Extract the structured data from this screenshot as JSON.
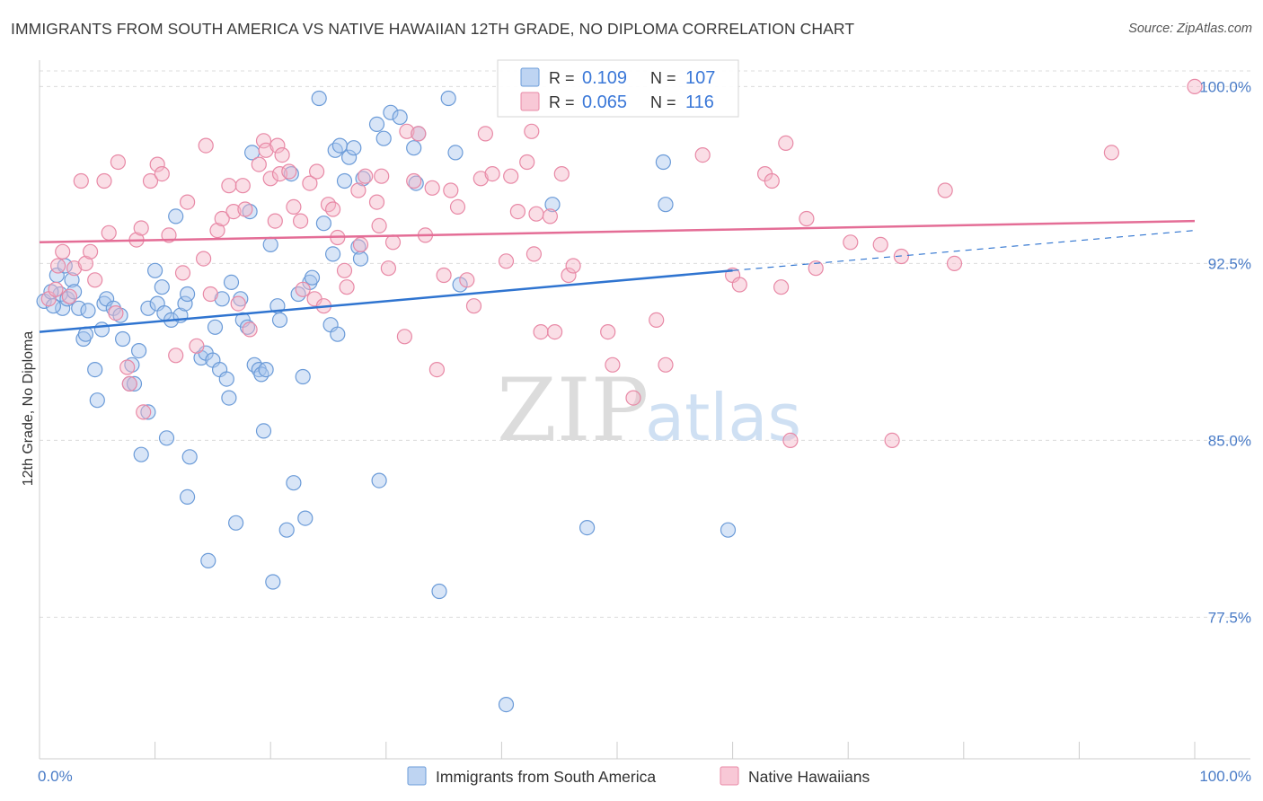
{
  "title": "IMMIGRANTS FROM SOUTH AMERICA VS NATIVE HAWAIIAN 12TH GRADE, NO DIPLOMA CORRELATION CHART",
  "source": "Source: ZipAtlas.com",
  "watermark": {
    "zip": "ZIP",
    "atlas": "atlas"
  },
  "legend_top": [
    {
      "r_label": "R =",
      "r_value": "0.109",
      "n_label": "N =",
      "n_value": "107",
      "color": "#a8c6ee"
    },
    {
      "r_label": "R =",
      "r_value": "0.065",
      "n_label": "N =",
      "n_value": "116",
      "color": "#f5b6c8"
    }
  ],
  "legend_bottom": [
    {
      "label": "Immigrants from South America",
      "color": "#a8c6ee"
    },
    {
      "label": "Native Hawaiians",
      "color": "#f5b6c8"
    }
  ],
  "chart_data": {
    "type": "scatter",
    "ylabel": "12th Grade, No Diploma",
    "xlim": [
      0,
      100
    ],
    "ylim": [
      71.5,
      101.5
    ],
    "y_ticks": [
      {
        "value": 100,
        "label": "100.0%"
      },
      {
        "value": 92.5,
        "label": "92.5%"
      },
      {
        "value": 85,
        "label": "85.0%"
      },
      {
        "value": 77.5,
        "label": "77.5%"
      }
    ],
    "x_tick_labels": [
      {
        "value": 0,
        "label": "0.0%"
      },
      {
        "value": 100,
        "label": "100.0%"
      }
    ],
    "grid": true,
    "series": [
      {
        "name": "Immigrants from South America",
        "color": "#a8c6ee",
        "stroke": "#6b9bd8",
        "trend": {
          "x0": 0,
          "y0": 89.6,
          "x1": 60,
          "y1": 92.2,
          "dash_x1": 100,
          "dash_y1": 93.9,
          "color": "#2f74d0"
        },
        "points": [
          [
            1.5,
            92.0
          ],
          [
            1.8,
            91.2
          ],
          [
            2.0,
            90.6
          ],
          [
            2.2,
            92.4
          ],
          [
            2.4,
            91.0
          ],
          [
            2.8,
            91.8
          ],
          [
            3.0,
            91.3
          ],
          [
            3.4,
            90.6
          ],
          [
            3.8,
            89.3
          ],
          [
            4.0,
            89.5
          ],
          [
            4.2,
            90.5
          ],
          [
            4.8,
            88.0
          ],
          [
            5.0,
            86.7
          ],
          [
            5.4,
            89.7
          ],
          [
            5.6,
            90.8
          ],
          [
            5.8,
            91.0
          ],
          [
            6.4,
            90.6
          ],
          [
            7.0,
            90.3
          ],
          [
            7.2,
            89.3
          ],
          [
            7.8,
            87.4
          ],
          [
            8.0,
            88.2
          ],
          [
            8.2,
            87.4
          ],
          [
            8.6,
            88.8
          ],
          [
            8.8,
            84.4
          ],
          [
            9.4,
            86.2
          ],
          [
            9.4,
            90.6
          ],
          [
            10.0,
            92.2
          ],
          [
            10.2,
            90.8
          ],
          [
            10.6,
            91.5
          ],
          [
            10.8,
            90.4
          ],
          [
            11.0,
            85.1
          ],
          [
            11.4,
            90.1
          ],
          [
            11.8,
            94.5
          ],
          [
            12.2,
            90.3
          ],
          [
            12.6,
            90.8
          ],
          [
            12.8,
            91.2
          ],
          [
            12.8,
            82.6
          ],
          [
            13.0,
            84.3
          ],
          [
            14.0,
            88.5
          ],
          [
            14.4,
            88.7
          ],
          [
            14.6,
            79.9
          ],
          [
            15.0,
            88.4
          ],
          [
            15.2,
            89.8
          ],
          [
            15.6,
            88.0
          ],
          [
            15.8,
            91.0
          ],
          [
            16.2,
            87.6
          ],
          [
            16.4,
            86.8
          ],
          [
            16.6,
            91.7
          ],
          [
            17.0,
            81.5
          ],
          [
            17.4,
            91.0
          ],
          [
            17.6,
            90.1
          ],
          [
            18.0,
            89.8
          ],
          [
            18.2,
            94.7
          ],
          [
            18.4,
            97.2
          ],
          [
            18.6,
            88.2
          ],
          [
            19.0,
            88.0
          ],
          [
            19.2,
            87.8
          ],
          [
            19.4,
            85.4
          ],
          [
            19.6,
            88.0
          ],
          [
            20.0,
            93.3
          ],
          [
            20.2,
            79.0
          ],
          [
            20.6,
            90.7
          ],
          [
            20.8,
            90.1
          ],
          [
            21.4,
            81.2
          ],
          [
            21.8,
            96.3
          ],
          [
            22.0,
            83.2
          ],
          [
            22.4,
            91.2
          ],
          [
            22.8,
            87.7
          ],
          [
            23.0,
            81.7
          ],
          [
            23.4,
            91.7
          ],
          [
            23.6,
            91.9
          ],
          [
            24.2,
            99.5
          ],
          [
            24.6,
            94.2
          ],
          [
            25.2,
            89.9
          ],
          [
            25.4,
            92.9
          ],
          [
            25.6,
            97.3
          ],
          [
            25.8,
            89.5
          ],
          [
            26.0,
            97.5
          ],
          [
            26.4,
            96.0
          ],
          [
            26.8,
            97.0
          ],
          [
            27.2,
            97.4
          ],
          [
            27.6,
            93.2
          ],
          [
            27.8,
            92.7
          ],
          [
            28.0,
            96.1
          ],
          [
            29.2,
            98.4
          ],
          [
            29.8,
            97.8
          ],
          [
            30.4,
            98.9
          ],
          [
            29.4,
            83.3
          ],
          [
            31.2,
            98.7
          ],
          [
            32.4,
            97.4
          ],
          [
            32.6,
            95.9
          ],
          [
            32.8,
            98.0
          ],
          [
            34.6,
            78.6
          ],
          [
            35.4,
            99.5
          ],
          [
            36.0,
            97.2
          ],
          [
            36.4,
            91.6
          ],
          [
            40.4,
            73.8
          ],
          [
            44.4,
            95.0
          ],
          [
            47.4,
            81.3
          ],
          [
            54.0,
            96.8
          ],
          [
            54.2,
            95.0
          ],
          [
            59.6,
            81.2
          ],
          [
            0.4,
            90.9
          ],
          [
            1.0,
            91.3
          ],
          [
            1.2,
            90.7
          ]
        ]
      },
      {
        "name": "Native Hawaiians",
        "color": "#f5b6c8",
        "stroke": "#e889a6",
        "trend": {
          "x0": 0,
          "y0": 93.4,
          "x1": 100,
          "y1": 94.3,
          "color": "#e46d96"
        },
        "points": [
          [
            0.8,
            91.0
          ],
          [
            1.4,
            91.4
          ],
          [
            1.6,
            92.4
          ],
          [
            2.0,
            93.0
          ],
          [
            2.6,
            91.1
          ],
          [
            3.0,
            92.3
          ],
          [
            3.6,
            96.0
          ],
          [
            4.0,
            92.5
          ],
          [
            4.4,
            93.0
          ],
          [
            4.8,
            91.8
          ],
          [
            5.6,
            96.0
          ],
          [
            6.0,
            93.8
          ],
          [
            6.6,
            90.4
          ],
          [
            6.8,
            96.8
          ],
          [
            7.6,
            88.1
          ],
          [
            7.8,
            87.4
          ],
          [
            8.4,
            93.5
          ],
          [
            8.8,
            94.0
          ],
          [
            9.0,
            86.2
          ],
          [
            9.6,
            96.0
          ],
          [
            10.2,
            96.7
          ],
          [
            10.6,
            96.3
          ],
          [
            11.2,
            93.7
          ],
          [
            11.8,
            88.6
          ],
          [
            12.4,
            92.1
          ],
          [
            12.8,
            95.1
          ],
          [
            13.6,
            89.0
          ],
          [
            14.2,
            92.7
          ],
          [
            14.4,
            97.5
          ],
          [
            14.8,
            91.2
          ],
          [
            15.4,
            93.9
          ],
          [
            15.8,
            94.4
          ],
          [
            16.4,
            95.8
          ],
          [
            16.8,
            94.7
          ],
          [
            17.2,
            90.8
          ],
          [
            17.6,
            95.8
          ],
          [
            17.8,
            94.8
          ],
          [
            18.2,
            89.7
          ],
          [
            19.0,
            96.7
          ],
          [
            19.4,
            97.7
          ],
          [
            19.6,
            97.3
          ],
          [
            20.0,
            96.1
          ],
          [
            20.4,
            94.3
          ],
          [
            20.6,
            97.5
          ],
          [
            20.8,
            96.3
          ],
          [
            21.0,
            97.1
          ],
          [
            21.6,
            96.4
          ],
          [
            22.0,
            94.9
          ],
          [
            22.6,
            94.3
          ],
          [
            22.8,
            91.4
          ],
          [
            23.4,
            95.9
          ],
          [
            23.8,
            91.0
          ],
          [
            24.0,
            96.4
          ],
          [
            24.6,
            90.7
          ],
          [
            25.0,
            95.0
          ],
          [
            25.4,
            94.8
          ],
          [
            25.8,
            93.6
          ],
          [
            26.4,
            92.2
          ],
          [
            26.6,
            91.5
          ],
          [
            27.6,
            95.6
          ],
          [
            27.8,
            93.3
          ],
          [
            28.2,
            96.2
          ],
          [
            29.2,
            95.1
          ],
          [
            29.4,
            94.1
          ],
          [
            29.6,
            96.2
          ],
          [
            30.2,
            92.3
          ],
          [
            30.6,
            93.4
          ],
          [
            31.6,
            89.4
          ],
          [
            31.8,
            98.1
          ],
          [
            32.4,
            96.0
          ],
          [
            32.8,
            98.0
          ],
          [
            33.4,
            93.7
          ],
          [
            34.0,
            95.7
          ],
          [
            34.4,
            88.0
          ],
          [
            35.0,
            92.0
          ],
          [
            35.6,
            95.6
          ],
          [
            36.2,
            94.9
          ],
          [
            37.0,
            91.8
          ],
          [
            37.6,
            90.7
          ],
          [
            38.2,
            96.1
          ],
          [
            38.6,
            98.0
          ],
          [
            39.2,
            96.3
          ],
          [
            40.4,
            92.6
          ],
          [
            40.8,
            96.2
          ],
          [
            41.4,
            94.7
          ],
          [
            42.2,
            96.8
          ],
          [
            42.6,
            98.1
          ],
          [
            42.8,
            92.9
          ],
          [
            43.0,
            94.6
          ],
          [
            43.4,
            89.6
          ],
          [
            44.2,
            94.5
          ],
          [
            44.6,
            89.6
          ],
          [
            45.2,
            96.3
          ],
          [
            45.8,
            92.0
          ],
          [
            46.2,
            92.4
          ],
          [
            49.2,
            89.6
          ],
          [
            49.6,
            88.2
          ],
          [
            51.4,
            86.8
          ],
          [
            53.4,
            90.1
          ],
          [
            54.2,
            88.2
          ],
          [
            57.4,
            97.1
          ],
          [
            60.0,
            92.0
          ],
          [
            60.6,
            91.6
          ],
          [
            62.8,
            96.3
          ],
          [
            63.4,
            96.0
          ],
          [
            64.2,
            91.5
          ],
          [
            64.6,
            97.6
          ],
          [
            65.0,
            85.0
          ],
          [
            66.4,
            94.4
          ],
          [
            67.2,
            92.3
          ],
          [
            70.2,
            93.4
          ],
          [
            72.8,
            93.3
          ],
          [
            73.8,
            85.0
          ],
          [
            74.6,
            92.8
          ],
          [
            78.4,
            95.6
          ],
          [
            79.2,
            92.5
          ],
          [
            92.8,
            97.2
          ],
          [
            100.0,
            100.0
          ]
        ]
      }
    ]
  }
}
